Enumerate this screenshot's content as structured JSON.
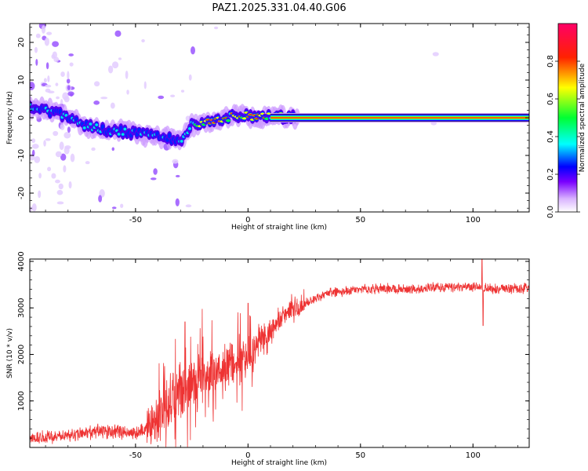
{
  "title": "PAZ1.2025.331.04.40.G06",
  "chart_data": [
    {
      "type": "heatmap",
      "name": "spectrogram",
      "xlabel": "Height of straight line (km)",
      "ylabel": "Frequency (Hz)",
      "xlim": [
        -97,
        125
      ],
      "ylim": [
        -25,
        25
      ],
      "xticks": [
        -50,
        0,
        50,
        100
      ],
      "yticks": [
        -20,
        -10,
        0,
        10,
        20
      ],
      "colorbar": {
        "label": "Normalized spectral amplitude",
        "range": [
          0,
          1
        ],
        "ticks": [
          "0.0",
          "0.2",
          "0.4",
          "0.6",
          "0.8"
        ],
        "tick_values": [
          0.0,
          0.2,
          0.4,
          0.6,
          0.8
        ],
        "colors": [
          "#ffffff",
          "#e6ccff",
          "#6600ff",
          "#0000ff",
          "#00ffff",
          "#00ff00",
          "#ffff00",
          "#ff0000",
          "#ff0066"
        ]
      },
      "ridge_frequency_hz": {
        "x": [
          -97,
          -90,
          -85,
          -80,
          -75,
          -70,
          -65,
          -60,
          -55,
          -50,
          -45,
          -40,
          -35,
          -30,
          -27,
          -25,
          -20,
          -15,
          -10,
          -5,
          0,
          5,
          10,
          20,
          50,
          100,
          125
        ],
        "y": [
          3,
          2,
          1.5,
          0.5,
          -1.5,
          -2.5,
          -3,
          -3.5,
          -3.5,
          -4,
          -4.5,
          -5,
          -5.5,
          -6,
          -4,
          -2,
          -1.5,
          -1,
          0,
          0.5,
          0.5,
          0,
          0.5,
          0,
          0,
          0,
          0
        ]
      }
    },
    {
      "type": "line",
      "name": "snr",
      "xlabel": "Height of straight line (km)",
      "ylabel": "SNR (10 * v/v)",
      "xlim": [
        -97,
        125
      ],
      "ylim": [
        0,
        4050
      ],
      "xticks": [
        -50,
        0,
        50,
        100
      ],
      "yticks": [
        1000,
        2000,
        3000,
        4000
      ],
      "color": "#ee3333",
      "trend": {
        "x": [
          -97,
          -80,
          -65,
          -50,
          -45,
          -40,
          -35,
          -30,
          -25,
          -20,
          -15,
          -10,
          -5,
          0,
          5,
          10,
          15,
          20,
          25,
          30,
          35,
          40,
          50,
          60,
          70,
          80,
          90,
          100,
          110,
          125
        ],
        "y": [
          200,
          250,
          350,
          300,
          400,
          600,
          900,
          1200,
          1400,
          1600,
          1700,
          1800,
          1900,
          2000,
          2300,
          2500,
          2800,
          3000,
          3100,
          3200,
          3300,
          3350,
          3400,
          3420,
          3400,
          3430,
          3440,
          3450,
          3400,
          3420
        ]
      },
      "spikes": [
        {
          "x": -28,
          "y": 2700
        },
        {
          "x": 0,
          "y": 3100
        },
        {
          "x": 104,
          "y": 4050
        },
        {
          "x": 104.5,
          "y": 2620
        }
      ]
    }
  ]
}
